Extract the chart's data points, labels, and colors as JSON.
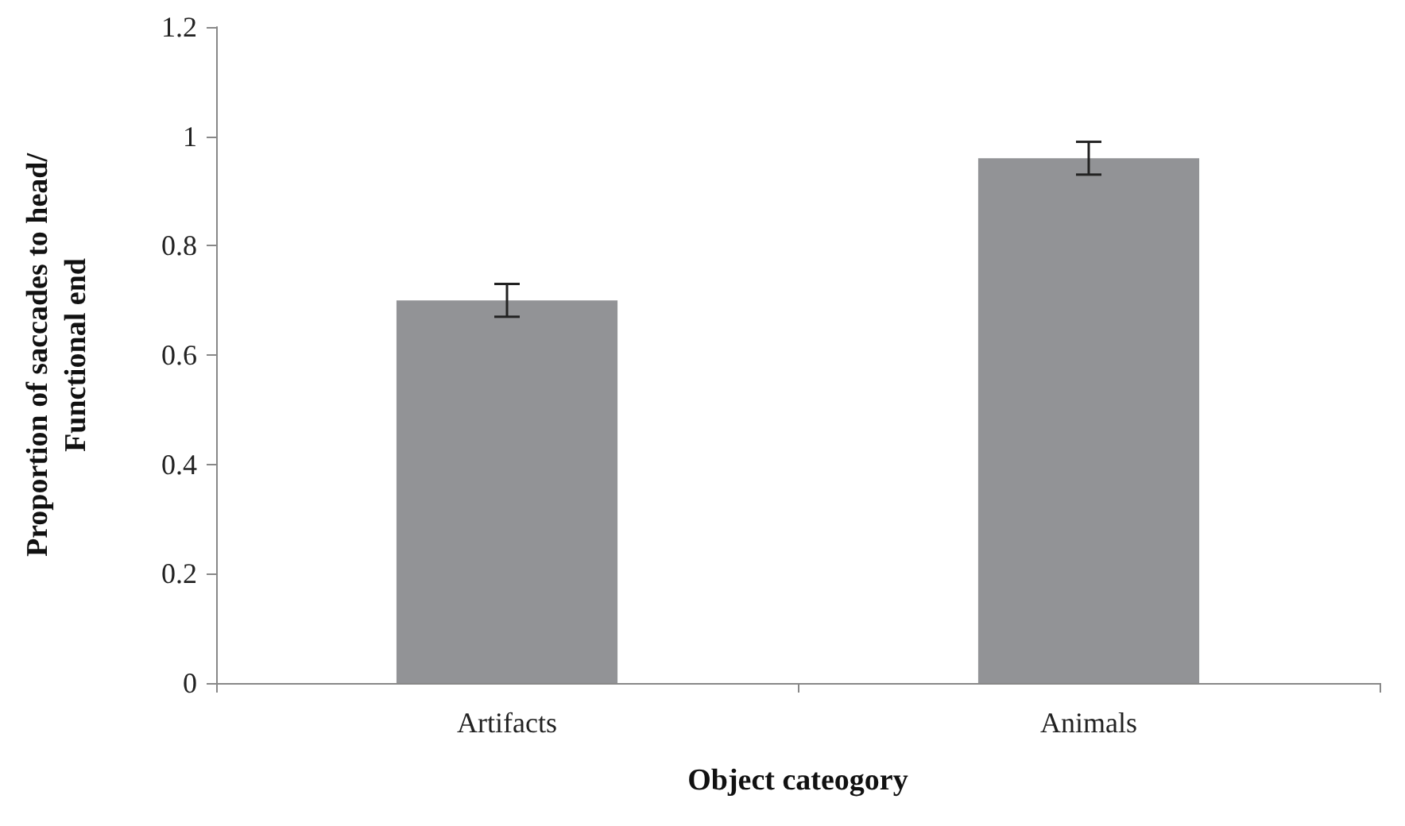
{
  "chart_data": {
    "type": "bar",
    "xlabel": "Object cateogory",
    "ylabel": "Proportion of saccades to head/\nFunctional end",
    "categories": [
      "Artifacts",
      "Animals"
    ],
    "values": [
      0.7,
      0.96
    ],
    "errors": [
      0.03,
      0.03
    ],
    "color": "#929396",
    "ylim": [
      0,
      1.2
    ],
    "yticks": [
      0,
      0.2,
      0.4,
      0.6,
      0.8,
      1,
      1.2
    ],
    "grid": false
  }
}
